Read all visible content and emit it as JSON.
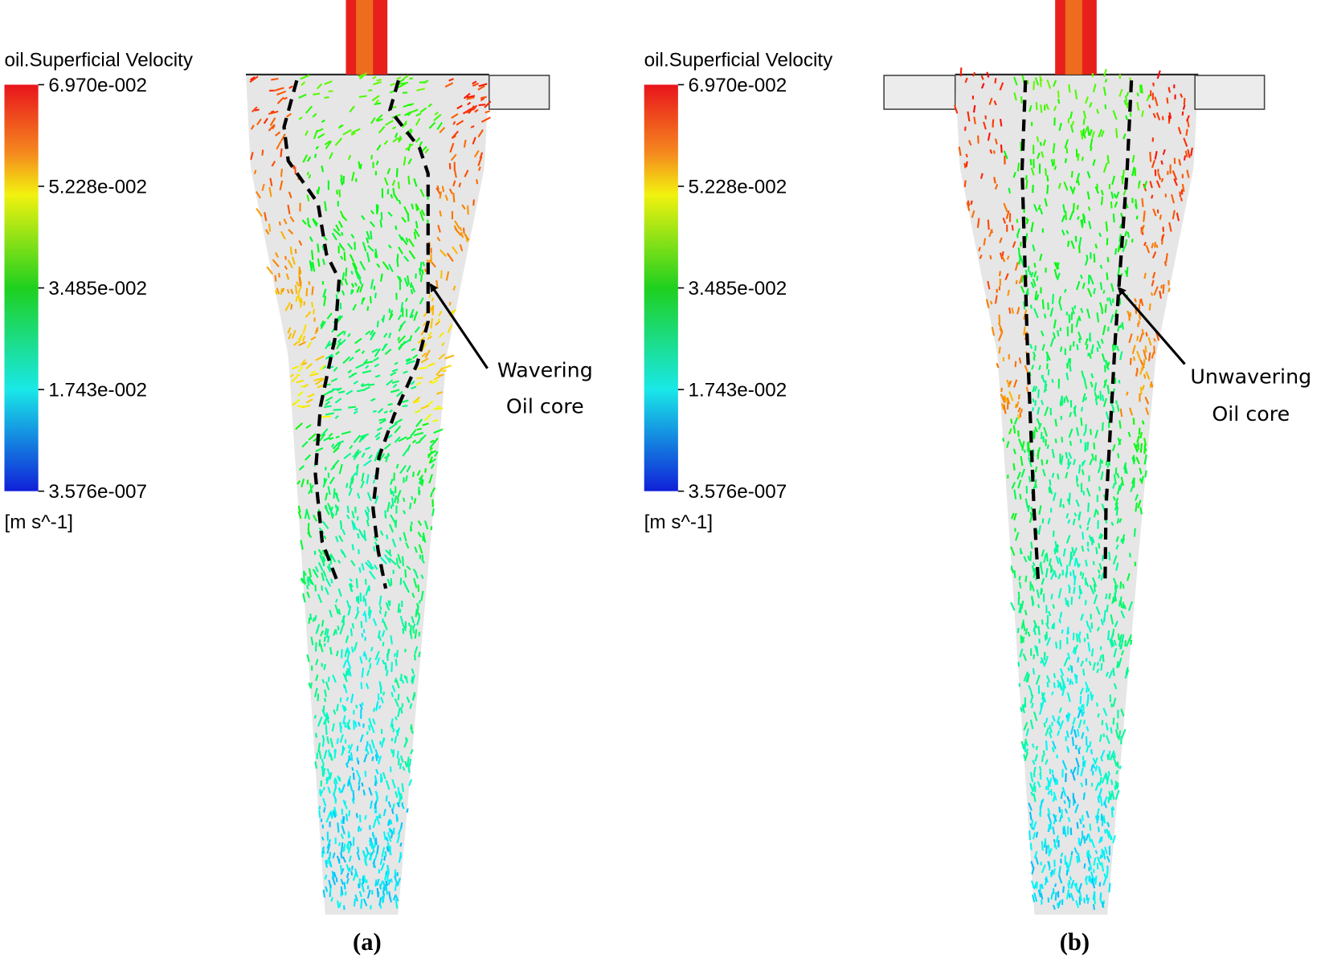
{
  "panels": [
    {
      "legend": {
        "title": "oil.Superficial Velocity",
        "ticks": [
          "6.970e-002",
          "5.228e-002",
          "3.485e-002",
          "1.743e-002",
          "3.576e-007"
        ],
        "unit": "[m s^-1]"
      },
      "annotation": [
        "Wavering",
        "Oil core"
      ],
      "caption": "(a)"
    },
    {
      "legend": {
        "title": "oil.Superficial Velocity",
        "ticks": [
          "6.970e-002",
          "5.228e-002",
          "3.485e-002",
          "1.743e-002",
          "3.576e-007"
        ],
        "unit": "[m s^-1]"
      },
      "annotation": [
        "Unwavering",
        "Oil core"
      ],
      "caption": "(b)"
    }
  ]
}
